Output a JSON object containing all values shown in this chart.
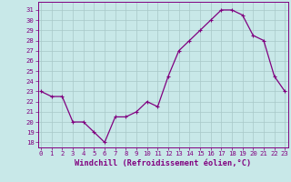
{
  "hours": [
    0,
    1,
    2,
    3,
    4,
    5,
    6,
    7,
    8,
    9,
    10,
    11,
    12,
    13,
    14,
    15,
    16,
    17,
    18,
    19,
    20,
    21,
    22,
    23
  ],
  "values": [
    23,
    22.5,
    22.5,
    20,
    20,
    19,
    18,
    20.5,
    20.5,
    21,
    22,
    21.5,
    24.5,
    27,
    28,
    29,
    30,
    31,
    31,
    30.5,
    28.5,
    28,
    24.5,
    23
  ],
  "line_color": "#800080",
  "bg_color": "#c8e8e8",
  "grid_color": "#a8c8c8",
  "xlabel": "Windchill (Refroidissement éolien,°C)",
  "ylim": [
    17.5,
    31.8
  ],
  "xlim": [
    -0.3,
    23.3
  ],
  "yticks": [
    18,
    19,
    20,
    21,
    22,
    23,
    24,
    25,
    26,
    27,
    28,
    29,
    30,
    31
  ],
  "xticks": [
    0,
    1,
    2,
    3,
    4,
    5,
    6,
    7,
    8,
    9,
    10,
    11,
    12,
    13,
    14,
    15,
    16,
    17,
    18,
    19,
    20,
    21,
    22,
    23
  ],
  "tick_color": "#800080",
  "tick_fontsize": 5.2,
  "xlabel_fontsize": 6.2,
  "marker": "+",
  "marker_size": 3.5,
  "line_width": 0.9
}
